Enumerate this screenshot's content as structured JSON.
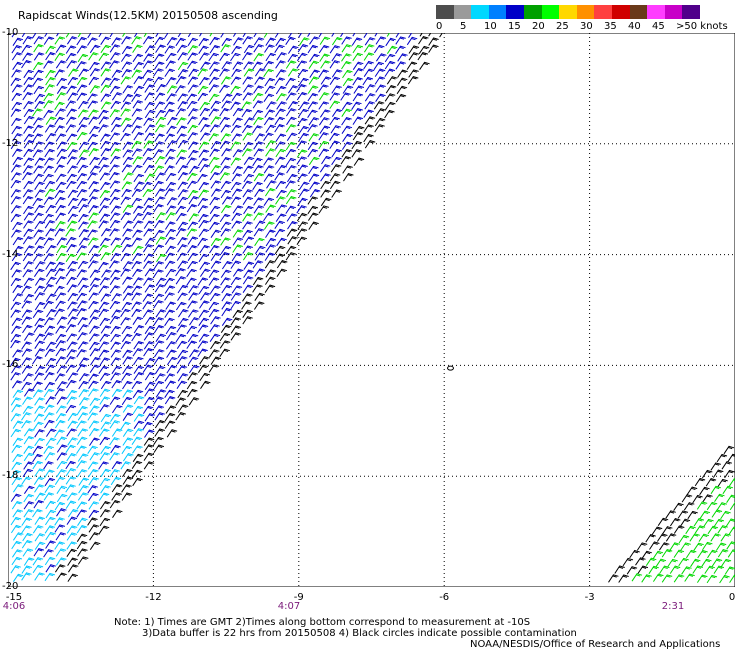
{
  "title": "Rapidscat Winds(12.5KM) 20150508 ascending",
  "legend": {
    "colors": [
      "#4d4d4d",
      "#9a9a9a",
      "#00d8ff",
      "#0080ff",
      "#0000c8",
      "#00a000",
      "#00ff00",
      "#ffd800",
      "#ff9000",
      "#ff4040",
      "#d00000",
      "#6a3a1a",
      "#ff3cff",
      "#c800c8",
      "#50008a"
    ],
    "labels": [
      "0",
      "5",
      "10",
      "15",
      "20",
      "25",
      "30",
      "35",
      "40",
      "45",
      ">50 knots"
    ]
  },
  "axes": {
    "lat_labels": [
      "-10",
      "-12",
      "-14",
      "-16",
      "-18",
      "-20"
    ],
    "lon_labels": [
      "-15",
      "-12",
      "-9",
      "-6",
      "-3",
      "0"
    ],
    "lat_range": [
      -20,
      -10
    ],
    "lon_range": [
      -15,
      0
    ],
    "grid": true
  },
  "times": [
    "4:06",
    "4:07",
    "2:31"
  ],
  "notes": [
    "Note: 1) Times are GMT 2)Times along bottom correspond to measurement at -10S",
    "3)Data buffer is 22 hrs from 20150508 4) Black circles indicate possible contamination"
  ],
  "credit": "NOAA/NESDIS/Office of Research and Applications",
  "wind_colors": {
    "light": "#00c8ff",
    "mid": "#0000c8",
    "strong": "#00d800",
    "rain": "#000000"
  },
  "swaths": [
    {
      "name": "western swath",
      "lat": [
        -20,
        -10
      ],
      "lon_west": -15,
      "lon_east_at_north": -6.0,
      "lon_east_at_south": -13.8
    },
    {
      "name": "eastern swath",
      "lat": [
        -20,
        -17.5
      ],
      "lon_east": 0,
      "lon_west_at_north": -0.1,
      "lon_west_at_south": -2.7
    }
  ]
}
